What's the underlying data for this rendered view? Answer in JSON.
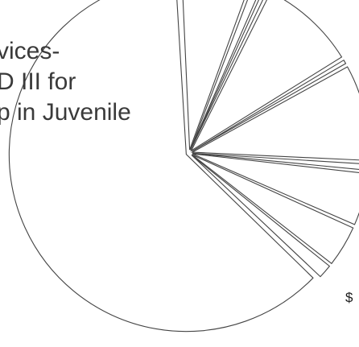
{
  "chart_data": {
    "type": "pie",
    "style": "exploded",
    "fill": "#ffffff",
    "stroke": "#444444",
    "title_lines": [
      "vices-",
      "D III for",
      "p in Juvenile"
    ],
    "edge_label": "$",
    "slices": [
      {
        "value": 62.0
      },
      {
        "value": 1.5
      },
      {
        "value": 4.0
      },
      {
        "value": 5.0
      },
      {
        "value": 0.8
      },
      {
        "value": 9.0
      },
      {
        "value": 0.6
      },
      {
        "value": 9.0
      },
      {
        "value": 0.6
      },
      {
        "value": 1.0
      },
      {
        "value": 6.5
      }
    ]
  }
}
